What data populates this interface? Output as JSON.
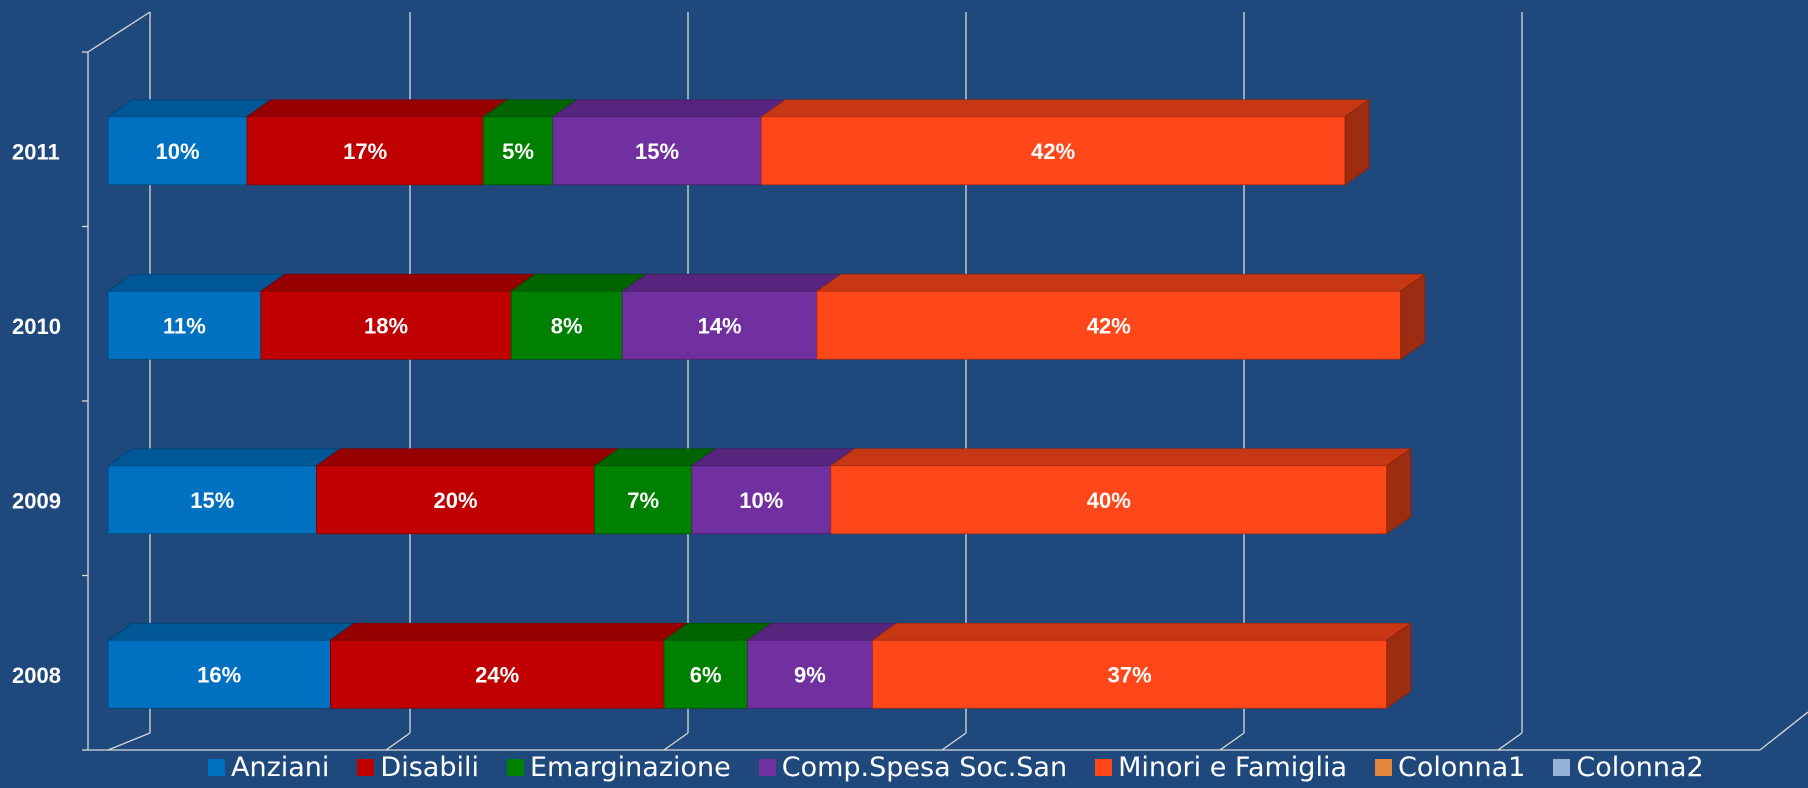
{
  "chart_data": {
    "type": "bar",
    "orientation": "horizontal",
    "stacked": true,
    "style": "3d",
    "categories": [
      "2008",
      "2009",
      "2010",
      "2011"
    ],
    "series": [
      {
        "name": "Anziani",
        "color": "#0070c0",
        "values": [
          16,
          15,
          11,
          10
        ],
        "labels": [
          "16%",
          "15%",
          "11%",
          "10%"
        ]
      },
      {
        "name": "Disabili",
        "color": "#c00000",
        "values": [
          24,
          20,
          18,
          17
        ],
        "labels": [
          "24%",
          "20%",
          "18%",
          "17%"
        ]
      },
      {
        "name": "Emarginazione",
        "color": "#008000",
        "values": [
          6,
          7,
          8,
          5
        ],
        "labels": [
          "6%",
          "7%",
          "8%",
          "5%"
        ]
      },
      {
        "name": "Comp.Spesa Soc.San",
        "color": "#7030a0",
        "values": [
          9,
          10,
          14,
          15
        ],
        "labels": [
          "9%",
          "10%",
          "14%",
          "15%"
        ]
      },
      {
        "name": "Minori e Famiglia",
        "color": "#ff4719",
        "values": [
          37,
          40,
          42,
          42
        ],
        "labels": [
          "37%",
          "40%",
          "42%",
          "42%"
        ]
      },
      {
        "name": "Colonna1",
        "color": "#e1873b",
        "values": [
          0,
          0,
          0,
          0
        ]
      },
      {
        "name": "Colonna2",
        "color": "#95b3d7",
        "values": [
          0,
          0,
          0,
          0
        ]
      }
    ],
    "xlim": [
      0,
      100
    ],
    "grid": true,
    "legend_position": "bottom"
  }
}
